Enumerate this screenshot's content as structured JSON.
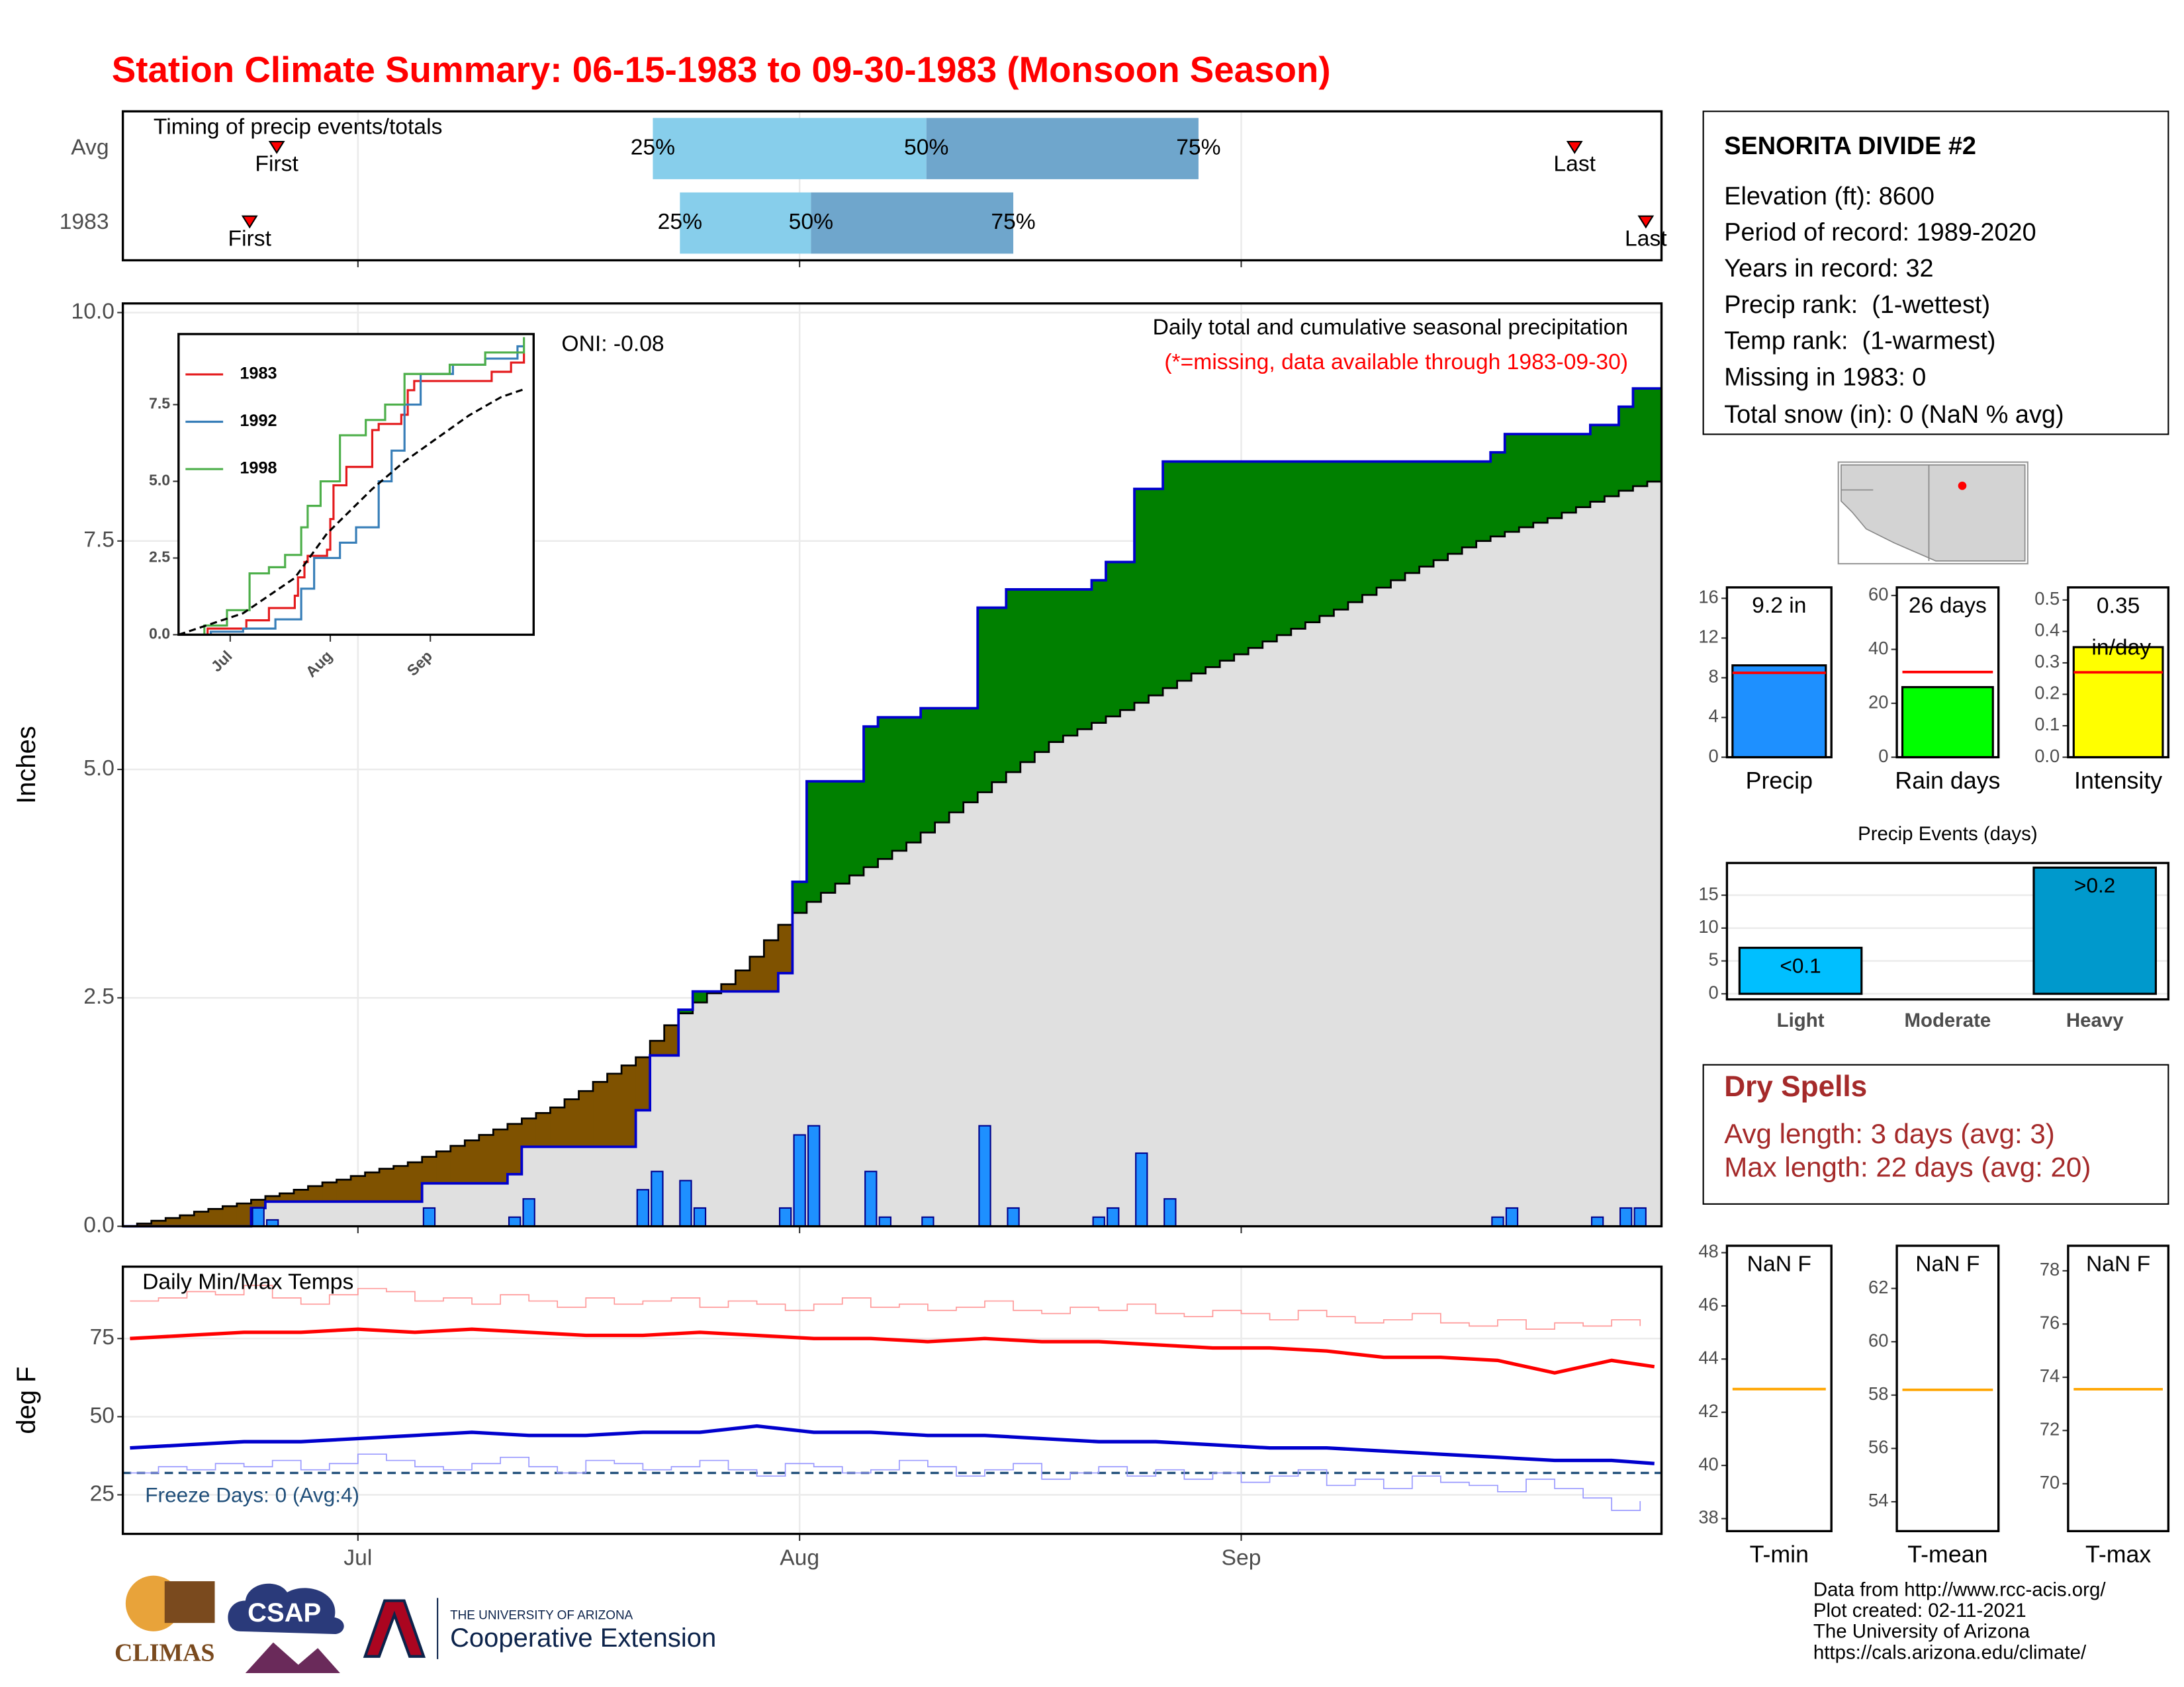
{
  "title": "Station Climate Summary: 06-15-1983 to 09-30-1983 (Monsoon Season)",
  "station": {
    "name": "SENORITA DIVIDE #2",
    "lines": [
      "Elevation (ft): 8600",
      "Period of record: 1989-2020",
      "Years in record: 32",
      "Precip rank:  (1-wettest)",
      "Temp rank:  (1-warmest)",
      "Missing in 1983: 0",
      "Total snow (in): 0 (NaN % avg)"
    ]
  },
  "dry_spells": {
    "title": "Dry Spells",
    "lines": [
      "Avg length: 3 days (avg: 3)",
      "Max length: 22 days (avg: 20)"
    ]
  },
  "footer": [
    "Data from http://www.rcc-acis.org/",
    "Plot created: 02-11-2021",
    "The University of Arizona",
    "https://cals.arizona.edu/climate/"
  ],
  "logos": [
    "CLIMAS",
    "CSAP",
    "THE UNIVERSITY OF ARIZONA",
    "Cooperative Extension"
  ],
  "chart_data": [
    {
      "type": "timing",
      "title": "Timing of precip events/totals",
      "categories": [
        "Avg",
        "1983"
      ],
      "quantile_labels": [
        "25%",
        "50%",
        "75%"
      ],
      "quantiles": [
        [
          36.7,
          55.9,
          75
        ],
        [
          38.6,
          47.8,
          62
        ]
      ],
      "marker_labels": [
        "First",
        "Last"
      ],
      "markers": [
        [
          10.3,
          101.4
        ],
        [
          8.4,
          106.4
        ]
      ],
      "colors": [
        "#87ceeb",
        "#6fa6cc"
      ],
      "marker_color": "#ff0000",
      "xlim": [
        -0.5,
        107.5
      ],
      "xticks": [
        16,
        47,
        78
      ],
      "grid": true
    },
    {
      "type": "cumulative",
      "title": "Daily total and cumulative seasonal precipitation",
      "subtitle": "(*=missing, data available through 1983-09-30)",
      "annotation": "ONI: -0.08",
      "y_label": "Inches",
      "xlim": [
        -0.5,
        107.5
      ],
      "xticks": [
        16,
        47,
        78
      ],
      "ylim": [
        0,
        10.1
      ],
      "yticks": [
        {
          "value": 0,
          "label": "0.0"
        },
        2.5,
        {
          "value": 5,
          "label": "5.0"
        },
        7.5,
        {
          "value": 10,
          "label": "10.0"
        }
      ],
      "grid": true,
      "series": [
        {
          "color": "#1e90ff",
          "values": [
            0,
            0,
            0,
            0,
            0,
            0,
            0,
            0,
            0,
            0.2,
            0.07,
            0,
            0,
            0,
            0,
            0,
            0,
            0,
            0,
            0,
            0,
            0.2,
            0,
            0,
            0,
            0,
            0,
            0.1,
            0.3,
            0,
            0,
            0,
            0,
            0,
            0,
            0,
            0.4,
            0.6,
            0,
            0.5,
            0.2,
            0,
            0,
            0,
            0,
            0,
            0.2,
            1.0,
            1.1,
            0,
            0,
            0,
            0.6,
            0.1,
            0,
            0,
            0.1,
            0,
            0,
            0,
            1.1,
            0,
            0.2,
            0,
            0,
            0,
            0,
            0,
            0.1,
            0.2,
            0,
            0.8,
            0,
            0.3,
            0,
            0,
            0,
            0,
            0,
            0,
            0,
            0,
            0,
            0,
            0,
            0,
            0,
            0,
            0,
            0,
            0,
            0,
            0,
            0,
            0,
            0,
            0.1,
            0.2,
            0,
            0,
            0,
            0,
            0,
            0.1,
            0,
            0.2,
            0.2,
            0
          ]
        },
        {
          "color": "#000000",
          "values": [
            0,
            0.03,
            0.06,
            0.09,
            0.12,
            0.16,
            0.19,
            0.22,
            0.25,
            0.29,
            0.33,
            0.36,
            0.4,
            0.44,
            0.48,
            0.51,
            0.55,
            0.59,
            0.63,
            0.66,
            0.7,
            0.76,
            0.82,
            0.88,
            0.94,
            1.0,
            1.06,
            1.12,
            1.18,
            1.24,
            1.3,
            1.39,
            1.48,
            1.58,
            1.67,
            1.76,
            1.85,
            2.03,
            2.2,
            2.33,
            2.45,
            2.55,
            2.65,
            2.8,
            2.95,
            3.13,
            3.3,
            3.43,
            3.55,
            3.65,
            3.75,
            3.84,
            3.93,
            4.02,
            4.11,
            4.2,
            4.31,
            4.42,
            4.53,
            4.64,
            4.75,
            4.86,
            4.97,
            5.08,
            5.19,
            5.3,
            5.37,
            5.44,
            5.51,
            5.58,
            5.65,
            5.73,
            5.81,
            5.89,
            5.97,
            6.05,
            6.12,
            6.19,
            6.26,
            6.33,
            6.4,
            6.47,
            6.54,
            6.61,
            6.68,
            6.75,
            6.83,
            6.91,
            6.99,
            7.07,
            7.15,
            7.22,
            7.29,
            7.36,
            7.43,
            7.5,
            7.55,
            7.6,
            7.65,
            7.7,
            7.75,
            7.81,
            7.87,
            7.93,
            7.99,
            8.05,
            8.1,
            8.15
          ]
        }
      ],
      "above_color": "#008000",
      "below_color": "#7f5200",
      "cumulative_color": "#0000cd",
      "fill_color": "#e0e0e0"
    },
    {
      "type": "line",
      "legend": "upper left",
      "xlim": [
        0,
        110
      ],
      "xticks": [
        {
          "value": 16,
          "label": "Jul"
        },
        {
          "value": 47,
          "label": "Aug"
        },
        {
          "value": 78,
          "label": "Sep"
        }
      ],
      "ylim": [
        0,
        9.8
      ],
      "yticks": [
        {
          "value": 0,
          "label": "0.0"
        },
        2.5,
        {
          "value": 5,
          "label": "5.0"
        },
        7.5
      ],
      "grid": false,
      "series": [
        {
          "name": "1983",
          "color": "#e41a1c",
          "style": "step",
          "x": [
            0,
            9,
            21,
            28,
            36,
            37,
            39,
            40,
            46,
            47,
            48,
            52,
            60,
            62,
            69,
            71,
            73,
            97,
            103,
            107
          ],
          "values": [
            0,
            0.2,
            0.47,
            0.87,
            1.27,
            1.87,
            2.37,
            2.57,
            2.77,
            3.77,
            4.87,
            5.47,
            6.67,
            6.87,
            7.17,
            7.97,
            8.27,
            8.57,
            8.87,
            9.17
          ]
        },
        {
          "name": "1992",
          "color": "#377eb8",
          "style": "step",
          "x": [
            0,
            10,
            20,
            30,
            38,
            42,
            50,
            55,
            62,
            66,
            70,
            75,
            85,
            95,
            105,
            107
          ],
          "values": [
            0,
            0.1,
            0.2,
            0.5,
            1.5,
            2.5,
            3.0,
            3.5,
            5.0,
            6.0,
            7.5,
            8.5,
            8.8,
            9.0,
            9.4,
            9.4
          ]
        },
        {
          "name": "1998",
          "color": "#4daf4a",
          "style": "step",
          "x": [
            0,
            8,
            15,
            22,
            28,
            33,
            38,
            40,
            44,
            50,
            58,
            64,
            70,
            84,
            95,
            107
          ],
          "values": [
            0,
            0.3,
            0.8,
            2.0,
            2.2,
            2.6,
            3.5,
            4.2,
            5.0,
            6.5,
            7.0,
            7.5,
            8.5,
            8.8,
            9.2,
            9.7
          ]
        },
        {
          "color": "#000000",
          "style": "dashed",
          "x": [
            0,
            20,
            36,
            46,
            60,
            70,
            80,
            90,
            100,
            107
          ],
          "values": [
            0,
            0.7,
            1.85,
            3.3,
            4.75,
            5.65,
            6.4,
            7.15,
            7.75,
            8.0
          ]
        }
      ]
    },
    {
      "type": "line",
      "title": "Daily Min/Max Temps",
      "annotation": "Freeze Days: 0 (Avg:4)",
      "y_label": "deg F",
      "freeze": 32,
      "freeze_color": "#1f4e79",
      "xlim": [
        -0.5,
        107.5
      ],
      "xticks": [
        {
          "value": 16,
          "label": "Jul"
        },
        {
          "value": 47,
          "label": "Aug"
        },
        {
          "value": 78,
          "label": "Sep"
        }
      ],
      "ylim": [
        12.5,
        98
      ],
      "yticks": [
        25,
        50,
        75
      ],
      "grid": true,
      "series": [
        {
          "color": "#ff9999",
          "style": "step",
          "width": 0.8,
          "x": [
            0,
            2,
            4,
            6,
            8,
            10,
            12,
            14,
            16,
            18,
            20,
            22,
            24,
            26,
            28,
            30,
            32,
            34,
            36,
            38,
            40,
            42,
            44,
            46,
            48,
            50,
            52,
            54,
            56,
            58,
            60,
            62,
            64,
            66,
            68,
            70,
            72,
            74,
            76,
            78,
            80,
            82,
            84,
            86,
            88,
            90,
            92,
            94,
            96,
            98,
            100,
            102,
            104,
            106
          ],
          "values": [
            87,
            88,
            90,
            89,
            92,
            88,
            86,
            89,
            91,
            90,
            87,
            88,
            86,
            89,
            87,
            85,
            88,
            86,
            87,
            88,
            85,
            87,
            86,
            84,
            86,
            88,
            85,
            86,
            84,
            85,
            87,
            84,
            83,
            85,
            84,
            86,
            83,
            82,
            84,
            83,
            81,
            84,
            82,
            80,
            81,
            83,
            80,
            79,
            81,
            78,
            80,
            79,
            81,
            79
          ]
        },
        {
          "color": "#9999ff",
          "style": "step",
          "width": 0.8,
          "x": [
            0,
            2,
            4,
            6,
            8,
            10,
            12,
            14,
            16,
            18,
            20,
            22,
            24,
            26,
            28,
            30,
            32,
            34,
            36,
            38,
            40,
            42,
            44,
            46,
            48,
            50,
            52,
            54,
            56,
            58,
            60,
            62,
            64,
            66,
            68,
            70,
            72,
            74,
            76,
            78,
            80,
            82,
            84,
            86,
            88,
            90,
            92,
            94,
            96,
            98,
            100,
            102,
            104,
            106
          ],
          "values": [
            32,
            34,
            33,
            35,
            34,
            36,
            33,
            35,
            38,
            36,
            34,
            33,
            35,
            37,
            34,
            32,
            36,
            35,
            33,
            34,
            36,
            33,
            31,
            35,
            34,
            32,
            33,
            36,
            34,
            31,
            33,
            35,
            30,
            32,
            34,
            31,
            33,
            30,
            32,
            29,
            31,
            33,
            28,
            30,
            27,
            31,
            29,
            28,
            26,
            30,
            27,
            24,
            20,
            23
          ]
        },
        {
          "color": "#ff0000",
          "style": "line",
          "width": 2.5,
          "x": [
            0,
            4,
            8,
            12,
            16,
            20,
            24,
            28,
            32,
            36,
            40,
            44,
            48,
            52,
            56,
            60,
            64,
            68,
            72,
            76,
            80,
            84,
            88,
            92,
            96,
            100,
            104,
            107
          ],
          "values": [
            75,
            76,
            77,
            77,
            78,
            77,
            78,
            77,
            76,
            76,
            77,
            76,
            75,
            75,
            74,
            75,
            74,
            74,
            73,
            72,
            72,
            71,
            69,
            69,
            68,
            64,
            68,
            66
          ]
        },
        {
          "color": "#0000cd",
          "style": "line",
          "width": 2.5,
          "x": [
            0,
            4,
            8,
            12,
            16,
            20,
            24,
            28,
            32,
            36,
            40,
            44,
            48,
            52,
            56,
            60,
            64,
            68,
            72,
            76,
            80,
            84,
            88,
            92,
            96,
            100,
            104,
            107
          ],
          "values": [
            40,
            41,
            42,
            42,
            43,
            44,
            45,
            44,
            44,
            45,
            45,
            47,
            45,
            45,
            44,
            44,
            43,
            42,
            42,
            41,
            40,
            40,
            39,
            38,
            37,
            36,
            36,
            35
          ]
        }
      ]
    },
    {
      "type": "bar",
      "categories": [
        "Precip"
      ],
      "values": [
        9.25
      ],
      "value_labels": [
        "9.2 in"
      ],
      "color": "#1e90ff",
      "avg": [
        8.5
      ],
      "avg_color": "#ff0000",
      "ylim": [
        0,
        17.1
      ],
      "yticks": [
        0,
        4,
        8,
        12,
        16
      ]
    },
    {
      "type": "bar",
      "categories": [
        "Rain days"
      ],
      "values": [
        26
      ],
      "value_labels": [
        "26 days"
      ],
      "color": "#00ff00",
      "avg": [
        31.6
      ],
      "avg_color": "#ff0000",
      "ylim": [
        0,
        63
      ],
      "yticks": [
        0,
        20,
        40,
        60
      ]
    },
    {
      "type": "bar",
      "categories": [
        "Intensity"
      ],
      "values": [
        0.35
      ],
      "value_labels": [
        "0.35 in/day"
      ],
      "color": "#ffff00",
      "avg": [
        0.27
      ],
      "avg_color": "#ff0000",
      "ylim": [
        0,
        0.54
      ],
      "yticks": [
        {
          "value": 0,
          "label": "0.0"
        },
        0.1,
        0.2,
        0.3,
        0.4,
        0.5
      ]
    },
    {
      "type": "bar",
      "title": "Precip Events (days)",
      "categories": [
        "Light",
        "Moderate",
        "Heavy"
      ],
      "values": [
        7,
        0,
        19.2
      ],
      "value_labels": [
        "<0.1",
        null,
        ">0.2"
      ],
      "colors": [
        "#00bfff",
        "#1e90ff",
        "#0099cc"
      ],
      "ylim": [
        -0.85,
        19.9
      ],
      "yticks": [
        0,
        5,
        10,
        15
      ],
      "grid": true
    },
    {
      "type": "bar",
      "categories": [
        "T-min"
      ],
      "values": [
        null
      ],
      "value_labels": [
        "NaN F"
      ],
      "color": "#1e90ff",
      "avg": [
        42.87
      ],
      "avg_color": "#ffa500",
      "ylim": [
        37.53,
        48.26
      ],
      "yticks": [
        38,
        40,
        42,
        44,
        46,
        48
      ]
    },
    {
      "type": "bar",
      "categories": [
        "T-mean"
      ],
      "values": [
        null
      ],
      "value_labels": [
        "NaN F"
      ],
      "color": "#1e90ff",
      "avg": [
        58.2
      ],
      "avg_color": "#ffa500",
      "ylim": [
        52.9,
        63.6
      ],
      "yticks": [
        54,
        56,
        58,
        60,
        62
      ]
    },
    {
      "type": "bar",
      "categories": [
        "T-max"
      ],
      "values": [
        null
      ],
      "value_labels": [
        "NaN F"
      ],
      "color": "#1e90ff",
      "avg": [
        73.55
      ],
      "avg_color": "#ffa500",
      "ylim": [
        68.22,
        78.94
      ],
      "yticks": [
        70,
        72,
        74,
        76,
        78
      ]
    }
  ]
}
